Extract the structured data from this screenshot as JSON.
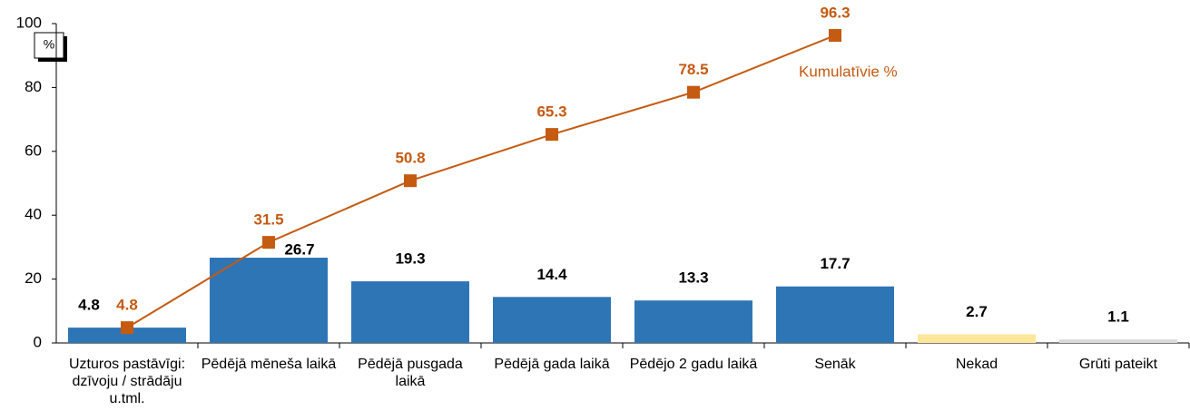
{
  "chart_data": {
    "type": "bar",
    "y_unit": "%",
    "categories": [
      "Uzturos pastāvīgi: dzīvoju / strādāju u.tml.",
      "Pēdējā mēneša laikā",
      "Pēdējā pusgada laikā",
      "Pēdējā gada laikā",
      "Pēdējo 2 gadu laikā",
      "Senāk",
      "Nekad",
      "Grūti pateikt"
    ],
    "values": [
      4.8,
      26.7,
      19.3,
      14.4,
      13.3,
      17.7,
      2.7,
      1.1
    ],
    "colors": [
      "#2e75b6",
      "#2e75b6",
      "#2e75b6",
      "#2e75b6",
      "#2e75b6",
      "#2e75b6",
      "#ffe699",
      "#d9d9d9"
    ],
    "line": {
      "name": "Kumulatīvie %",
      "color": "#c55a11",
      "values": [
        4.8,
        31.5,
        50.8,
        65.3,
        78.5,
        96.3
      ]
    },
    "ylim": [
      0,
      100
    ],
    "yticks": [
      0,
      20,
      40,
      60,
      80,
      100
    ]
  }
}
